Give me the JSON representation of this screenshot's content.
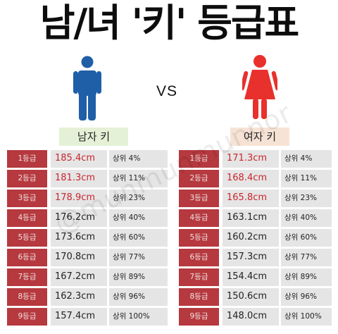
{
  "title": "남/녀 '키' 등급표",
  "vs": "VS",
  "male": {
    "label": "남자 키",
    "icon": "man-figure-icon",
    "color": "#1f5fa8",
    "rows": [
      {
        "grade": "1등급",
        "height": "185.4cm",
        "pct": "상위 4%"
      },
      {
        "grade": "2등급",
        "height": "181.3cm",
        "pct": "상위 11%"
      },
      {
        "grade": "3등급",
        "height": "178.9cm",
        "pct": "상위 23%"
      },
      {
        "grade": "4등급",
        "height": "176.2cm",
        "pct": "상위 40%"
      },
      {
        "grade": "5등급",
        "height": "173.6cm",
        "pct": "상위 60%"
      },
      {
        "grade": "6등급",
        "height": "170.8cm",
        "pct": "상위 77%"
      },
      {
        "grade": "7등급",
        "height": "167.2cm",
        "pct": "상위 89%"
      },
      {
        "grade": "8등급",
        "height": "162.3cm",
        "pct": "상위 96%"
      },
      {
        "grade": "9등급",
        "height": "157.4cm",
        "pct": "상위 100%"
      }
    ]
  },
  "female": {
    "label": "여자 키",
    "icon": "woman-figure-icon",
    "color": "#e8302c",
    "rows": [
      {
        "grade": "1등급",
        "height": "171.3cm",
        "pct": "상위 4%"
      },
      {
        "grade": "2등급",
        "height": "168.4cm",
        "pct": "상위 11%"
      },
      {
        "grade": "3등급",
        "height": "165.8cm",
        "pct": "상위 23%"
      },
      {
        "grade": "4등급",
        "height": "163.1cm",
        "pct": "상위 40%"
      },
      {
        "grade": "5등급",
        "height": "160.2cm",
        "pct": "상위 60%"
      },
      {
        "grade": "6등급",
        "height": "157.3cm",
        "pct": "상위 77%"
      },
      {
        "grade": "7등급",
        "height": "154.4cm",
        "pct": "상위 89%"
      },
      {
        "grade": "8등급",
        "height": "150.6cm",
        "pct": "상위 96%"
      },
      {
        "grade": "9등급",
        "height": "148.0cm",
        "pct": "상위 100%"
      }
    ]
  },
  "colors": {
    "grade_bg": "#b5393e",
    "cell_bg": "#e5e5e5",
    "top_height_text": "#c9252d"
  },
  "watermark": "@munmunmunnor"
}
